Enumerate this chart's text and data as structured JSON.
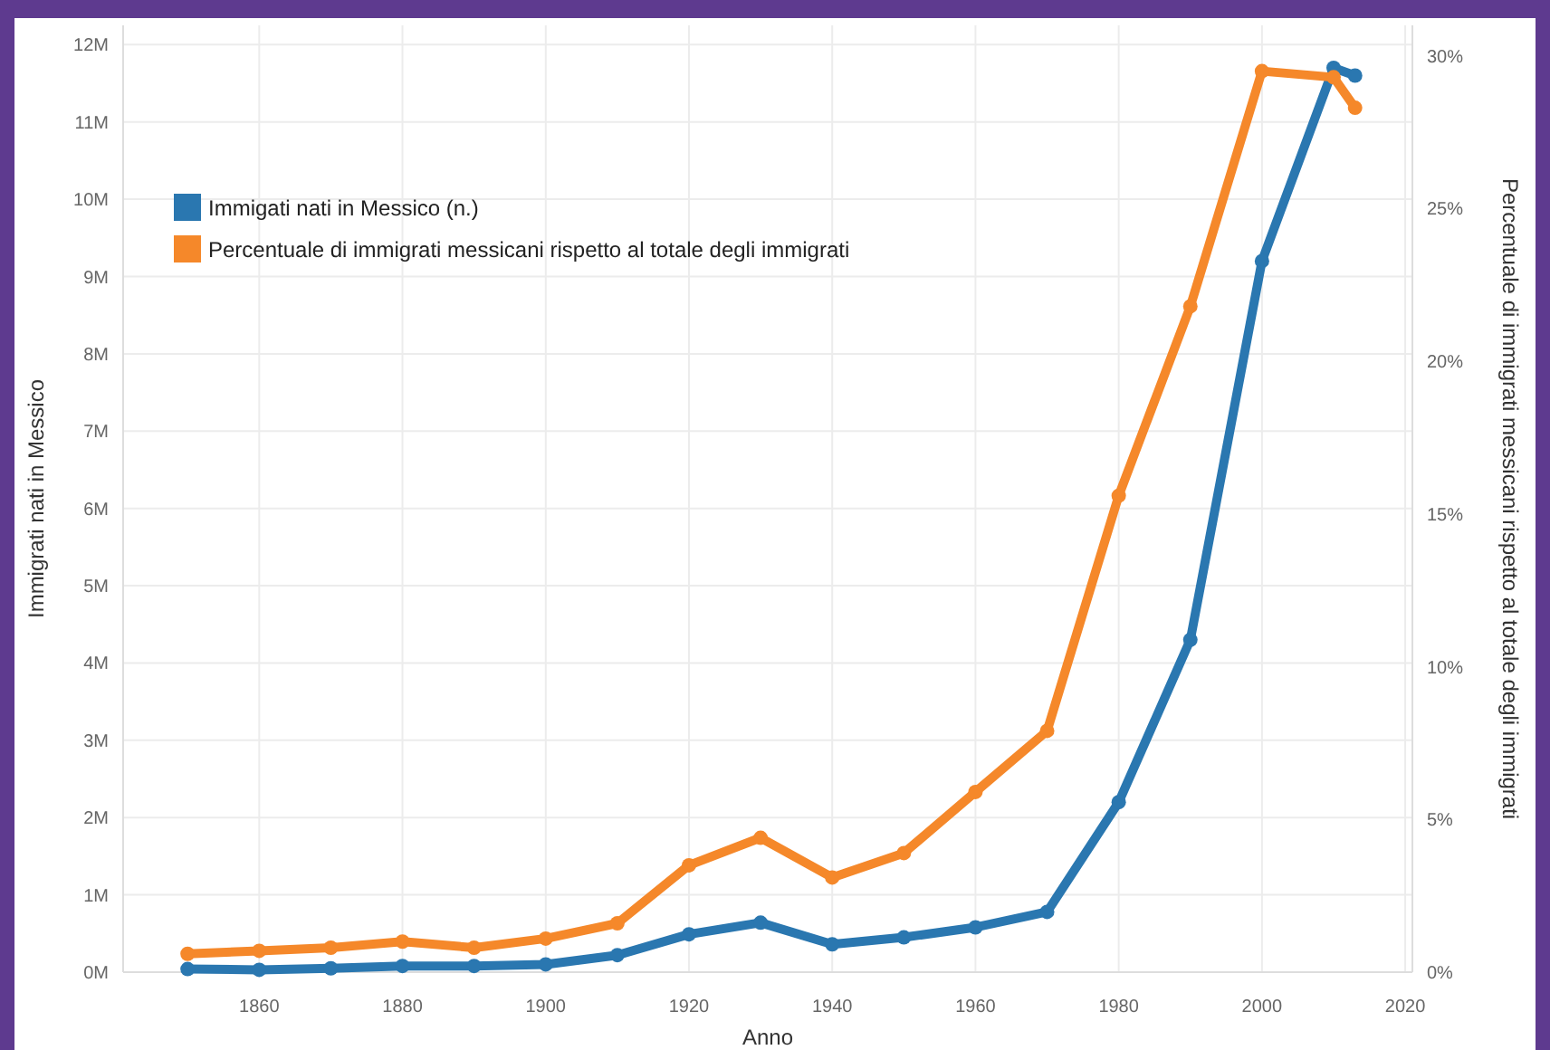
{
  "chart_data": {
    "type": "line",
    "xlabel": "Anno",
    "ylabel": "Immigrati nati in Messico",
    "y2label": "Percentuale di immigrati messicani rispetto al totale degli immigrati",
    "x": [
      1850,
      1860,
      1870,
      1880,
      1890,
      1900,
      1910,
      1920,
      1930,
      1940,
      1950,
      1960,
      1970,
      1980,
      1990,
      2000,
      2010,
      2013
    ],
    "series": [
      {
        "name": "Immigati nati in Messico (n.)",
        "color": "#2a77b0",
        "values": [
          0.04,
          0.03,
          0.05,
          0.08,
          0.08,
          0.1,
          0.22,
          0.49,
          0.64,
          0.36,
          0.45,
          0.58,
          0.78,
          2.2,
          4.3,
          9.2,
          11.7,
          11.6
        ]
      },
      {
        "name": "Percentuale di immigrati messicani rispetto al totale degli immigrati",
        "color": "#f5882a",
        "axis": "y2",
        "values": [
          0.6,
          0.7,
          0.8,
          1.0,
          0.8,
          1.1,
          1.6,
          3.5,
          4.4,
          3.1,
          3.9,
          5.9,
          7.9,
          15.6,
          21.8,
          29.5,
          29.3,
          28.3
        ]
      }
    ],
    "xlim": [
      1841,
      2021
    ],
    "xticks": [
      1860,
      1880,
      1900,
      1920,
      1940,
      1960,
      1980,
      2000,
      2020
    ],
    "ylim": [
      0,
      12.25
    ],
    "yticks": [
      {
        "value": 0,
        "label": "0M"
      },
      {
        "value": 1,
        "label": "1M"
      },
      {
        "value": 2,
        "label": "2M"
      },
      {
        "value": 3,
        "label": "3M"
      },
      {
        "value": 4,
        "label": "4M"
      },
      {
        "value": 5,
        "label": "5M"
      },
      {
        "value": 6,
        "label": "6M"
      },
      {
        "value": 7,
        "label": "7M"
      },
      {
        "value": 8,
        "label": "8M"
      },
      {
        "value": 9,
        "label": "9M"
      },
      {
        "value": 10,
        "label": "10M"
      },
      {
        "value": 11,
        "label": "11M"
      },
      {
        "value": 12,
        "label": "12M"
      }
    ],
    "y2lim": [
      0,
      31
    ],
    "y2ticks": [
      {
        "value": 0,
        "label": "0%"
      },
      {
        "value": 5,
        "label": "5%"
      },
      {
        "value": 10,
        "label": "10%"
      },
      {
        "value": 15,
        "label": "15%"
      },
      {
        "value": 20,
        "label": "20%"
      },
      {
        "value": 25,
        "label": "25%"
      },
      {
        "value": 30,
        "label": "30%"
      }
    ],
    "grid": true,
    "legend": "top left",
    "marker": "circle",
    "line_style": "solid"
  }
}
